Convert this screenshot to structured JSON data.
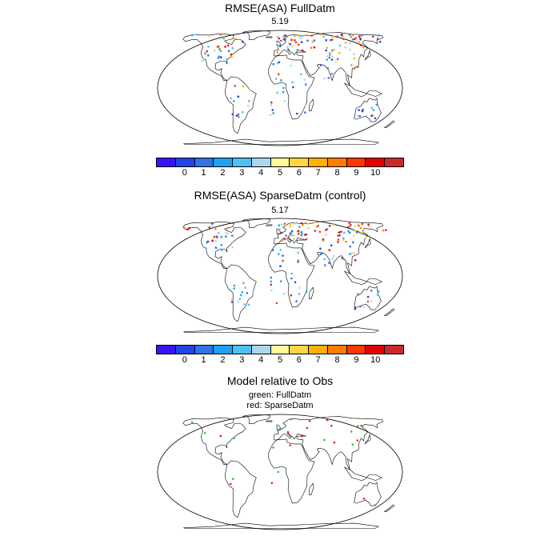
{
  "panels": [
    {
      "title": "RMSE(ASA) FullDatm",
      "subtitle": "5.19",
      "seed": 11,
      "mode": "rmse"
    },
    {
      "title": "RMSE(ASA) SparseDatm (control)",
      "subtitle": "5.17",
      "seed": 37,
      "mode": "rmse"
    },
    {
      "title": "Model relative to Obs",
      "subtitle": "green: FullDatm",
      "subtitle2": "red: SparseDatm",
      "seed": 53,
      "mode": "compare"
    }
  ],
  "colorbar": {
    "colors": [
      "#3b14f5",
      "#2344e6",
      "#2f73e6",
      "#1ea2f0",
      "#4fc0f2",
      "#a8d7ee",
      "#fff89a",
      "#ffd540",
      "#ffb000",
      "#ff7d00",
      "#ff3800",
      "#e20000",
      "#cc2a2a"
    ],
    "labels": [
      "0",
      "1",
      "2",
      "3",
      "4",
      "5",
      "6",
      "7",
      "8",
      "9",
      "10"
    ]
  },
  "compare_colors": {
    "full": "#22cc22",
    "sparse": "#e82020"
  }
}
